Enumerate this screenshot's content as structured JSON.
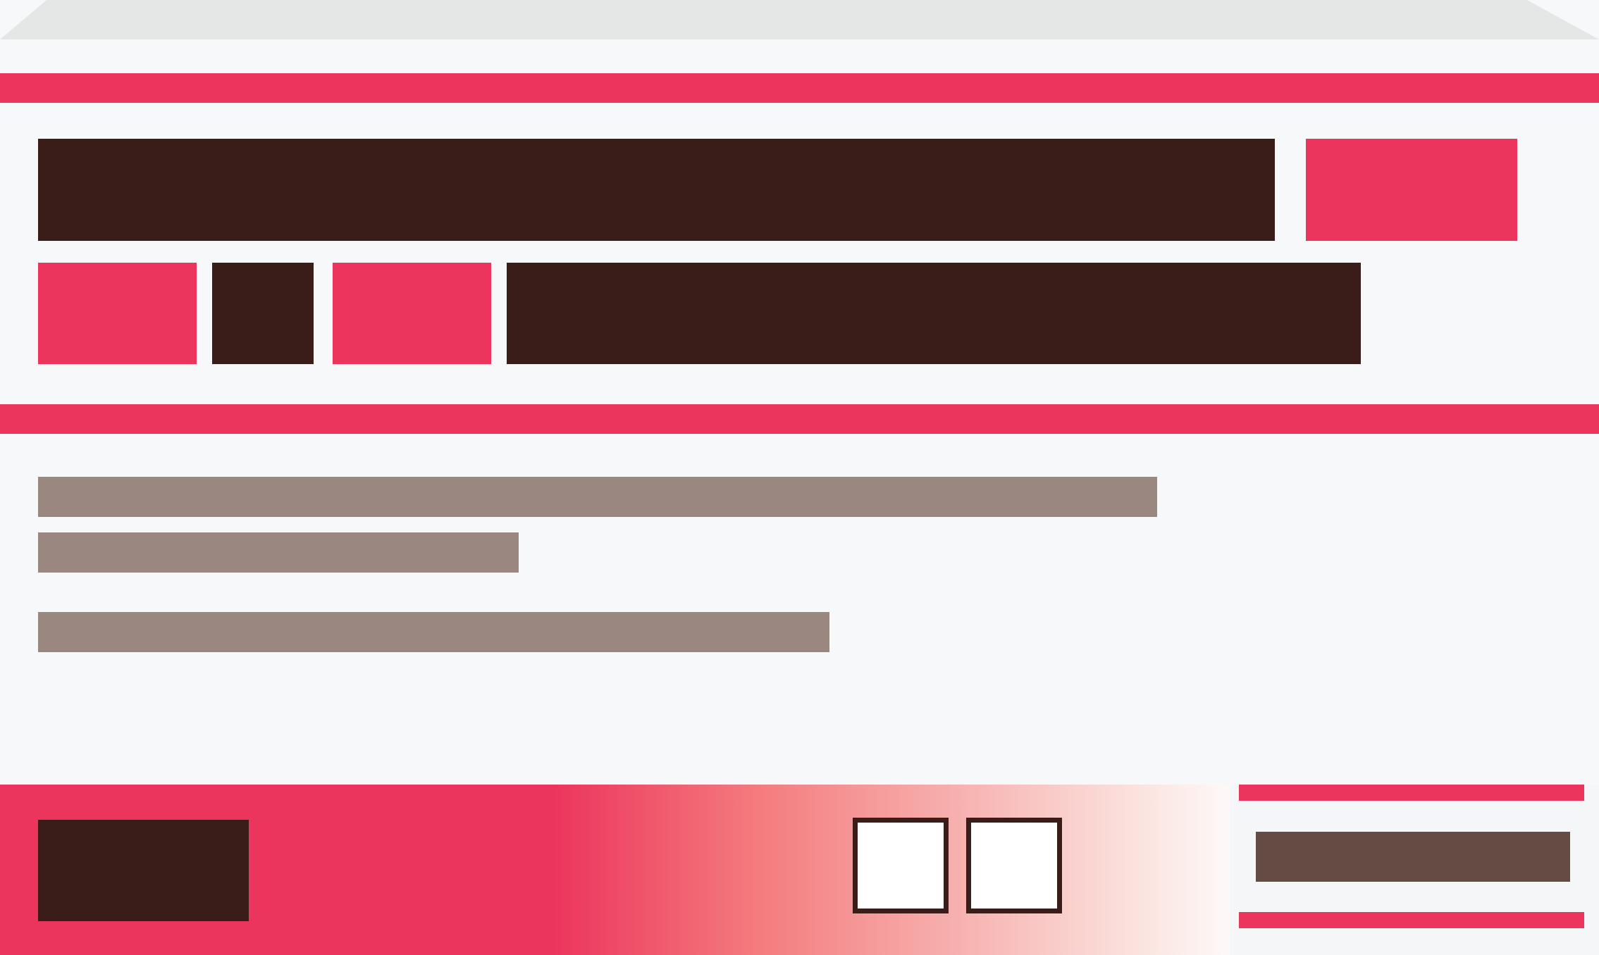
{
  "colors": {
    "background": "#f7f8fa",
    "accent": "#ec355c",
    "dark": "#3a1d18",
    "muted": "#9a8780",
    "muted_dark": "#644c45",
    "top_band": "#e5e7e6",
    "box_fill": "#ffffff"
  },
  "labels": {}
}
